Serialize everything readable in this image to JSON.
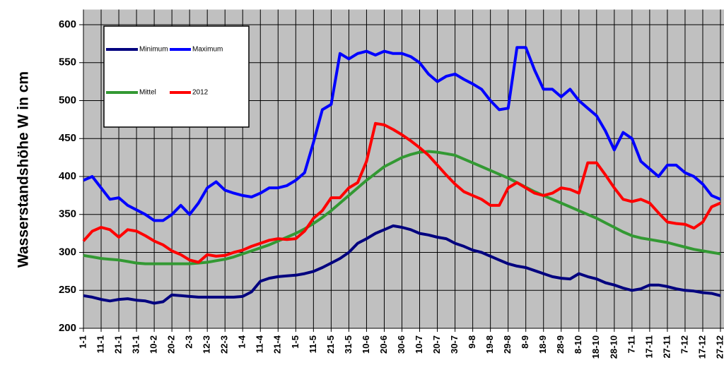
{
  "chart_data": {
    "type": "line",
    "y_label": "Wasserstandshöhe W in cm",
    "x": [
      1,
      6,
      11,
      16,
      21,
      26,
      31,
      36,
      41,
      46,
      51,
      56,
      61,
      66,
      71,
      76,
      81,
      86,
      91,
      96,
      101,
      106,
      111,
      116,
      121,
      126,
      131,
      136,
      141,
      146,
      151,
      156,
      161,
      166,
      171,
      176,
      181,
      186,
      191,
      196,
      201,
      206,
      211,
      216,
      221,
      226,
      231,
      236,
      241,
      246,
      251,
      256,
      261,
      266,
      271,
      276,
      281,
      286,
      291,
      296,
      301,
      306,
      311,
      316,
      321,
      326,
      331,
      336,
      341,
      346,
      351,
      356,
      361
    ],
    "xlim": [
      1,
      363
    ],
    "xticks": [
      {
        "value": 1,
        "label": "1-1"
      },
      {
        "value": 11,
        "label": "11-1"
      },
      {
        "value": 21,
        "label": "21-1"
      },
      {
        "value": 31,
        "label": "31-1"
      },
      {
        "value": 41,
        "label": "10-2"
      },
      {
        "value": 51,
        "label": "20-2"
      },
      {
        "value": 61,
        "label": "2-3"
      },
      {
        "value": 71,
        "label": "12-3"
      },
      {
        "value": 81,
        "label": "22-3"
      },
      {
        "value": 91,
        "label": "1-4"
      },
      {
        "value": 101,
        "label": "11-4"
      },
      {
        "value": 111,
        "label": "21-4"
      },
      {
        "value": 121,
        "label": "1-5"
      },
      {
        "value": 131,
        "label": "11-5"
      },
      {
        "value": 141,
        "label": "21-5"
      },
      {
        "value": 151,
        "label": "31-5"
      },
      {
        "value": 161,
        "label": "10-6"
      },
      {
        "value": 171,
        "label": "20-6"
      },
      {
        "value": 181,
        "label": "30-6"
      },
      {
        "value": 191,
        "label": "10-7"
      },
      {
        "value": 201,
        "label": "20-7"
      },
      {
        "value": 211,
        "label": "30-7"
      },
      {
        "value": 221,
        "label": "9-8"
      },
      {
        "value": 231,
        "label": "19-8"
      },
      {
        "value": 241,
        "label": "29-8"
      },
      {
        "value": 251,
        "label": "8-9"
      },
      {
        "value": 261,
        "label": "18-9"
      },
      {
        "value": 271,
        "label": "28-9"
      },
      {
        "value": 281,
        "label": "8-10"
      },
      {
        "value": 291,
        "label": "18-10"
      },
      {
        "value": 301,
        "label": "28-10"
      },
      {
        "value": 311,
        "label": "7-11"
      },
      {
        "value": 321,
        "label": "17-11"
      },
      {
        "value": 331,
        "label": "27-11"
      },
      {
        "value": 341,
        "label": "7-12"
      },
      {
        "value": 351,
        "label": "17-12"
      },
      {
        "value": 361,
        "label": "27-12"
      }
    ],
    "ylim": [
      200,
      620
    ],
    "yticks": [
      200,
      250,
      300,
      350,
      400,
      450,
      500,
      550,
      600
    ],
    "grid": true,
    "series": [
      {
        "name": "Minimum",
        "color": "#00007f",
        "values": [
          243,
          241,
          238,
          236,
          238,
          239,
          237,
          236,
          233,
          235,
          244,
          243,
          242,
          241,
          241,
          241,
          241,
          241,
          242,
          248,
          262,
          266,
          268,
          269,
          270,
          272,
          275,
          280,
          286,
          292,
          300,
          312,
          318,
          325,
          330,
          335,
          333,
          330,
          325,
          323,
          320,
          318,
          312,
          308,
          303,
          300,
          295,
          290,
          285,
          282,
          280,
          276,
          272,
          268,
          266,
          265,
          272,
          268,
          265,
          260,
          257,
          253,
          250,
          252,
          257,
          257,
          255,
          252,
          250,
          249,
          247,
          246,
          243
        ]
      },
      {
        "name": "Maximum",
        "color": "#0000ff",
        "values": [
          395,
          400,
          385,
          370,
          372,
          362,
          356,
          350,
          342,
          342,
          350,
          362,
          350,
          365,
          385,
          393,
          382,
          378,
          375,
          373,
          378,
          385,
          385,
          388,
          395,
          405,
          445,
          488,
          495,
          562,
          555,
          562,
          565,
          560,
          565,
          562,
          562,
          558,
          550,
          535,
          525,
          532,
          535,
          528,
          522,
          515,
          500,
          488,
          490,
          570,
          570,
          540,
          515,
          515,
          505,
          515,
          500,
          490,
          480,
          460,
          435,
          458,
          450,
          420,
          410,
          400,
          415,
          415,
          405,
          400,
          390,
          375,
          370
        ]
      },
      {
        "name": "Mittel",
        "color": "#339933",
        "values": [
          296,
          294,
          292,
          291,
          290,
          288,
          286,
          285,
          285,
          285,
          285,
          285,
          285,
          286,
          287,
          289,
          291,
          294,
          298,
          302,
          306,
          310,
          315,
          320,
          325,
          331,
          338,
          346,
          355,
          365,
          375,
          385,
          395,
          404,
          413,
          419,
          425,
          429,
          432,
          433,
          432,
          430,
          428,
          423,
          418,
          413,
          408,
          403,
          398,
          392,
          386,
          380,
          375,
          370,
          365,
          360,
          355,
          350,
          345,
          339,
          333,
          327,
          322,
          319,
          317,
          315,
          313,
          310,
          307,
          304,
          302,
          300,
          298
        ]
      },
      {
        "name": "2012",
        "color": "#ff0000",
        "values": [
          315,
          328,
          333,
          330,
          320,
          330,
          328,
          322,
          315,
          310,
          302,
          297,
          290,
          287,
          297,
          295,
          296,
          300,
          303,
          308,
          312,
          316,
          318,
          317,
          318,
          328,
          345,
          355,
          372,
          372,
          385,
          392,
          420,
          470,
          468,
          462,
          455,
          447,
          438,
          428,
          415,
          402,
          390,
          380,
          375,
          370,
          362,
          362,
          385,
          392,
          385,
          378,
          375,
          378,
          385,
          383,
          378,
          418,
          418,
          402,
          385,
          370,
          367,
          370,
          365,
          352,
          340,
          338,
          337,
          332,
          340,
          360,
          365
        ]
      }
    ]
  }
}
